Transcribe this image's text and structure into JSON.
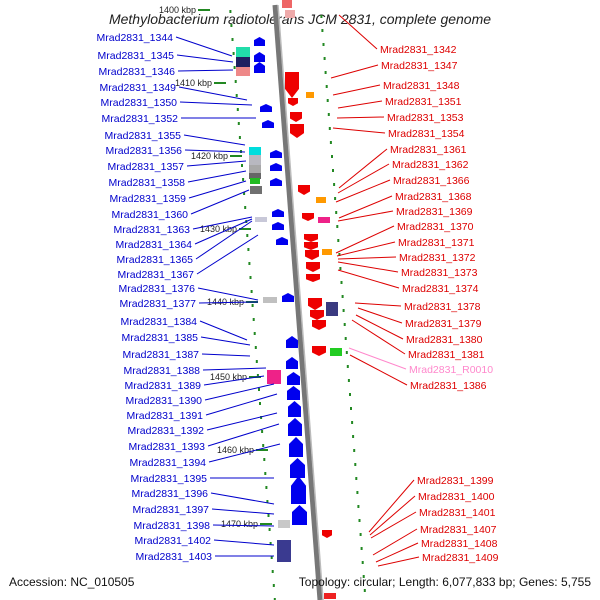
{
  "title": "Methylobacterium radiotolerans JCM 2831, complete genome",
  "accession": "Accession: NC_010505",
  "summary": "Topology: circular; Length: 6,077,833 bp; Genes: 5,755",
  "colors": {
    "left_label": "#0000cc",
    "right_label": "#dd0000",
    "rna_label": "#ff88cc",
    "forward_gene": "#0000ee",
    "reverse_gene": "#ee0000",
    "backbone": "#888888",
    "tick": "#228822"
  },
  "kbp_markers": [
    "1400 kbp",
    "1410 kbp",
    "1420 kbp",
    "1430 kbp",
    "1440 kbp",
    "1450 kbp",
    "1460 kbp",
    "1470 kbp"
  ],
  "left_labels": [
    "Mrad2831_1344",
    "Mrad2831_1345",
    "Mrad2831_1346",
    "Mrad2831_1349",
    "Mrad2831_1350",
    "Mrad2831_1352",
    "Mrad2831_1355",
    "Mrad2831_1356",
    "Mrad2831_1357",
    "Mrad2831_1358",
    "Mrad2831_1359",
    "Mrad2831_1360",
    "Mrad2831_1363",
    "Mrad2831_1364",
    "Mrad2831_1365",
    "Mrad2831_1367",
    "Mrad2831_1376",
    "Mrad2831_1377",
    "Mrad2831_1384",
    "Mrad2831_1385",
    "Mrad2831_1387",
    "Mrad2831_1388",
    "Mrad2831_1389",
    "Mrad2831_1390",
    "Mrad2831_1391",
    "Mrad2831_1392",
    "Mrad2831_1393",
    "Mrad2831_1394",
    "Mrad2831_1395",
    "Mrad2831_1396",
    "Mrad2831_1397",
    "Mrad2831_1398",
    "Mrad2831_1402",
    "Mrad2831_1403"
  ],
  "right_labels": [
    "Mrad2831_1342",
    "Mrad2831_1347",
    "Mrad2831_1348",
    "Mrad2831_1351",
    "Mrad2831_1353",
    "Mrad2831_1354",
    "Mrad2831_1361",
    "Mrad2831_1362",
    "Mrad2831_1366",
    "Mrad2831_1368",
    "Mrad2831_1369",
    "Mrad2831_1370",
    "Mrad2831_1371",
    "Mrad2831_1372",
    "Mrad2831_1373",
    "Mrad2831_1374",
    "Mrad2831_1378",
    "Mrad2831_1379",
    "Mrad2831_1380",
    "Mrad2831_1381",
    "Mrad2831_R0010",
    "Mrad2831_1386",
    "Mrad2831_1399",
    "Mrad2831_1400",
    "Mrad2831_1401",
    "Mrad2831_1407",
    "Mrad2831_1408",
    "Mrad2831_1409"
  ]
}
